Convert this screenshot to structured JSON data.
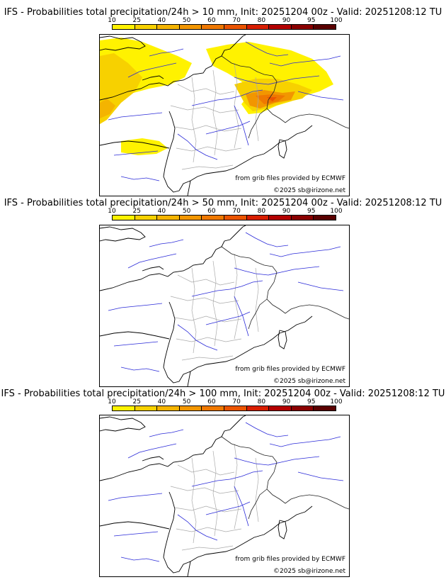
{
  "legend": {
    "ticks": [
      "10",
      "25",
      "40",
      "50",
      "60",
      "70",
      "80",
      "90",
      "95",
      "100"
    ],
    "colors": [
      "#fff200",
      "#f7d100",
      "#f4b400",
      "#f29600",
      "#ef7800",
      "#eb5400",
      "#d81e00",
      "#b30000",
      "#8a0000",
      "#5a0000"
    ]
  },
  "credit": {
    "source": "from grib files provided by ECMWF",
    "copyright": "©2025 sb@irizone.net"
  },
  "panels": [
    {
      "title": "IFS - Probabilities total precipitation/24h > 10 mm, Init: 20251204 00z - Valid: 20251208:12 TU",
      "threshold_mm": 10,
      "has_precip": true
    },
    {
      "title": "IFS - Probabilities total precipitation/24h > 50 mm, Init: 20251204 00z - Valid: 20251208:12 TU",
      "threshold_mm": 50,
      "has_precip": false
    },
    {
      "title": "IFS - Probabilities total precipitation/24h > 100 mm, Init: 20251204 00z - Valid: 20251208:12 TU",
      "threshold_mm": 100,
      "has_precip": false
    }
  ]
}
